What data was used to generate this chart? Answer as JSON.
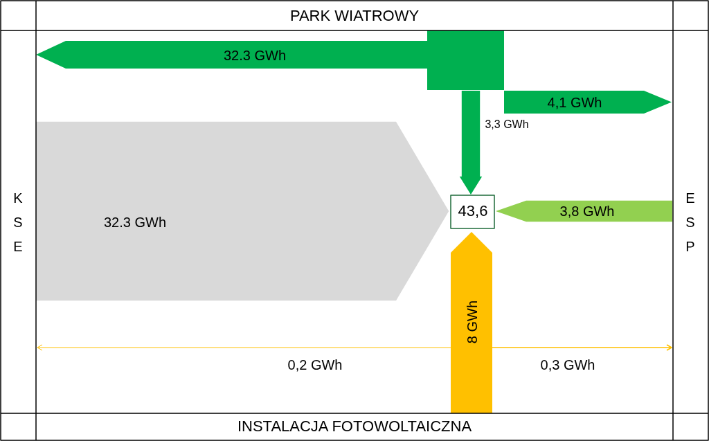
{
  "chart_data": {
    "type": "other",
    "annotations": [
      "PARK WIATROWY",
      "KSE",
      "ESP",
      "INSTALACJA FOTOWOLTAICZNA",
      "43,6"
    ],
    "values": [
      32.3,
      4.1,
      3.3,
      32.3,
      3.8,
      8,
      0.2,
      0.3
    ],
    "value_labels": [
      "32.3 GWh",
      "4,1 GWh",
      "3,3 GWh",
      "32.3 GWh",
      "3,8 GWh",
      "8 GWh",
      "0,2 GWh",
      "0,3 GWh"
    ],
    "colors": [
      "#00b050",
      "#00b050",
      "#00b050",
      "#d9d9d9",
      "#92d050",
      "#ffc000",
      "#ffc000",
      "#ffc000"
    ]
  }
}
